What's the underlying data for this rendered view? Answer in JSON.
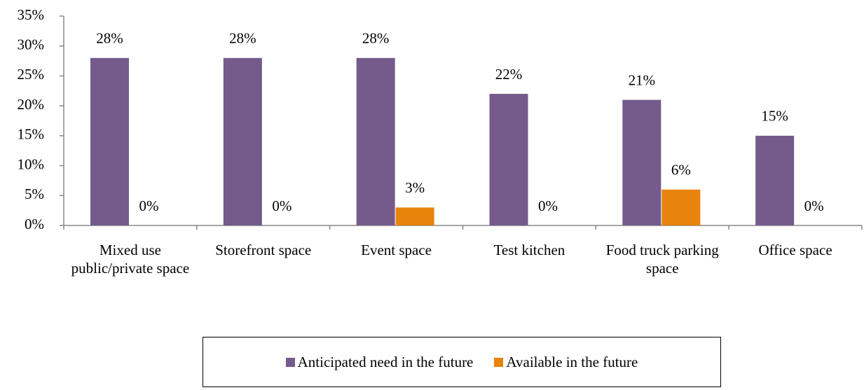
{
  "chart_data": {
    "type": "bar",
    "categories": [
      "Mixed use public/private space",
      "Storefront space",
      "Event space",
      "Test kitchen",
      "Food truck parking space",
      "Office space"
    ],
    "series": [
      {
        "name": "Anticipated need in the future",
        "color": "#745b8c",
        "values": [
          28,
          28,
          28,
          22,
          21,
          15
        ],
        "value_labels": [
          "28%",
          "28%",
          "28%",
          "22%",
          "21%",
          "15%"
        ]
      },
      {
        "name": "Available in the future",
        "color": "#e8830c",
        "values": [
          0,
          0,
          3,
          0,
          6,
          0
        ],
        "value_labels": [
          "0%",
          "0%",
          "3%",
          "0%",
          "6%",
          "0%"
        ]
      }
    ],
    "ylim": [
      0,
      35
    ],
    "yticks": [
      {
        "value": 0,
        "label": "0%"
      },
      {
        "value": 5,
        "label": "5%"
      },
      {
        "value": 10,
        "label": "10%"
      },
      {
        "value": 15,
        "label": "15%"
      },
      {
        "value": 20,
        "label": "20%"
      },
      {
        "value": 25,
        "label": "25%"
      },
      {
        "value": 30,
        "label": "30%"
      },
      {
        "value": 35,
        "label": "35%"
      }
    ],
    "legend": "bottom"
  }
}
